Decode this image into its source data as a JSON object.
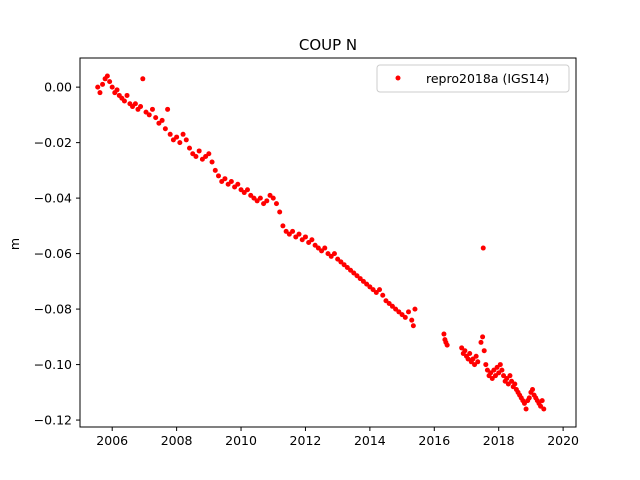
{
  "chart_data": {
    "type": "scatter",
    "title": "COUP N",
    "xlabel": "",
    "ylabel": "m",
    "xlim": [
      2005.0,
      2020.4
    ],
    "ylim": [
      -0.1225,
      0.0105
    ],
    "xticks": [
      2006,
      2008,
      2010,
      2012,
      2014,
      2016,
      2018,
      2020
    ],
    "xtick_labels": [
      "2006",
      "2008",
      "2010",
      "2012",
      "2014",
      "2016",
      "2018",
      "2020"
    ],
    "yticks": [
      0.0,
      -0.02,
      -0.04,
      -0.06,
      -0.08,
      -0.1,
      -0.12
    ],
    "ytick_labels": [
      "0.00",
      "−0.02",
      "−0.04",
      "−0.06",
      "−0.08",
      "−0.10",
      "−0.12"
    ],
    "legend": {
      "position": "top-right",
      "entries": [
        "repro2018a (IGS14)"
      ]
    },
    "grid": false,
    "series": [
      {
        "name": "repro2018a (IGS14)",
        "color": "#ff0000",
        "marker": "circle",
        "points": [
          [
            2005.55,
            0.0
          ],
          [
            2005.62,
            -0.002
          ],
          [
            2005.7,
            0.001
          ],
          [
            2005.78,
            0.003
          ],
          [
            2005.85,
            0.004
          ],
          [
            2005.92,
            0.002
          ],
          [
            2006.0,
            0.0
          ],
          [
            2006.08,
            -0.002
          ],
          [
            2006.15,
            -0.001
          ],
          [
            2006.22,
            -0.003
          ],
          [
            2006.3,
            -0.004
          ],
          [
            2006.38,
            -0.005
          ],
          [
            2006.46,
            -0.003
          ],
          [
            2006.55,
            -0.006
          ],
          [
            2006.63,
            -0.007
          ],
          [
            2006.72,
            -0.006
          ],
          [
            2006.8,
            -0.008
          ],
          [
            2006.88,
            -0.007
          ],
          [
            2006.95,
            0.003
          ],
          [
            2007.05,
            -0.009
          ],
          [
            2007.15,
            -0.01
          ],
          [
            2007.25,
            -0.008
          ],
          [
            2007.35,
            -0.011
          ],
          [
            2007.45,
            -0.013
          ],
          [
            2007.55,
            -0.012
          ],
          [
            2007.65,
            -0.015
          ],
          [
            2007.72,
            -0.008
          ],
          [
            2007.8,
            -0.017
          ],
          [
            2007.9,
            -0.019
          ],
          [
            2008.0,
            -0.018
          ],
          [
            2008.1,
            -0.02
          ],
          [
            2008.2,
            -0.017
          ],
          [
            2008.3,
            -0.019
          ],
          [
            2008.4,
            -0.022
          ],
          [
            2008.5,
            -0.024
          ],
          [
            2008.6,
            -0.025
          ],
          [
            2008.7,
            -0.023
          ],
          [
            2008.8,
            -0.026
          ],
          [
            2008.9,
            -0.025
          ],
          [
            2009.0,
            -0.024
          ],
          [
            2009.1,
            -0.027
          ],
          [
            2009.2,
            -0.03
          ],
          [
            2009.3,
            -0.032
          ],
          [
            2009.4,
            -0.034
          ],
          [
            2009.5,
            -0.033
          ],
          [
            2009.6,
            -0.035
          ],
          [
            2009.7,
            -0.034
          ],
          [
            2009.8,
            -0.036
          ],
          [
            2009.9,
            -0.035
          ],
          [
            2010.0,
            -0.037
          ],
          [
            2010.1,
            -0.038
          ],
          [
            2010.2,
            -0.037
          ],
          [
            2010.3,
            -0.039
          ],
          [
            2010.4,
            -0.04
          ],
          [
            2010.5,
            -0.041
          ],
          [
            2010.6,
            -0.04
          ],
          [
            2010.7,
            -0.042
          ],
          [
            2010.8,
            -0.041
          ],
          [
            2010.9,
            -0.039
          ],
          [
            2011.0,
            -0.04
          ],
          [
            2011.1,
            -0.042
          ],
          [
            2011.2,
            -0.045
          ],
          [
            2011.3,
            -0.05
          ],
          [
            2011.4,
            -0.052
          ],
          [
            2011.5,
            -0.053
          ],
          [
            2011.6,
            -0.052
          ],
          [
            2011.7,
            -0.054
          ],
          [
            2011.8,
            -0.053
          ],
          [
            2011.9,
            -0.055
          ],
          [
            2012.0,
            -0.054
          ],
          [
            2012.1,
            -0.056
          ],
          [
            2012.2,
            -0.055
          ],
          [
            2012.3,
            -0.057
          ],
          [
            2012.4,
            -0.058
          ],
          [
            2012.5,
            -0.059
          ],
          [
            2012.6,
            -0.058
          ],
          [
            2012.7,
            -0.06
          ],
          [
            2012.8,
            -0.061
          ],
          [
            2012.9,
            -0.06
          ],
          [
            2013.0,
            -0.062
          ],
          [
            2013.1,
            -0.063
          ],
          [
            2013.2,
            -0.064
          ],
          [
            2013.3,
            -0.065
          ],
          [
            2013.4,
            -0.066
          ],
          [
            2013.5,
            -0.067
          ],
          [
            2013.6,
            -0.068
          ],
          [
            2013.7,
            -0.069
          ],
          [
            2013.8,
            -0.07
          ],
          [
            2013.9,
            -0.071
          ],
          [
            2014.0,
            -0.072
          ],
          [
            2014.1,
            -0.073
          ],
          [
            2014.2,
            -0.074
          ],
          [
            2014.3,
            -0.073
          ],
          [
            2014.4,
            -0.075
          ],
          [
            2014.5,
            -0.077
          ],
          [
            2014.6,
            -0.078
          ],
          [
            2014.7,
            -0.079
          ],
          [
            2014.8,
            -0.08
          ],
          [
            2014.9,
            -0.081
          ],
          [
            2015.0,
            -0.082
          ],
          [
            2015.1,
            -0.083
          ],
          [
            2015.2,
            -0.081
          ],
          [
            2015.3,
            -0.084
          ],
          [
            2015.35,
            -0.086
          ],
          [
            2015.4,
            -0.08
          ],
          [
            2016.3,
            -0.089
          ],
          [
            2016.33,
            -0.091
          ],
          [
            2016.36,
            -0.092
          ],
          [
            2016.4,
            -0.093
          ],
          [
            2016.85,
            -0.094
          ],
          [
            2016.9,
            -0.096
          ],
          [
            2016.95,
            -0.095
          ],
          [
            2017.0,
            -0.097
          ],
          [
            2017.05,
            -0.098
          ],
          [
            2017.1,
            -0.096
          ],
          [
            2017.15,
            -0.099
          ],
          [
            2017.2,
            -0.098
          ],
          [
            2017.25,
            -0.1
          ],
          [
            2017.3,
            -0.097
          ],
          [
            2017.35,
            -0.099
          ],
          [
            2017.45,
            -0.092
          ],
          [
            2017.5,
            -0.09
          ],
          [
            2017.52,
            -0.058
          ],
          [
            2017.55,
            -0.095
          ],
          [
            2017.6,
            -0.1
          ],
          [
            2017.65,
            -0.102
          ],
          [
            2017.7,
            -0.104
          ],
          [
            2017.75,
            -0.103
          ],
          [
            2017.8,
            -0.105
          ],
          [
            2017.85,
            -0.102
          ],
          [
            2017.9,
            -0.104
          ],
          [
            2017.95,
            -0.101
          ],
          [
            2018.0,
            -0.103
          ],
          [
            2018.05,
            -0.1
          ],
          [
            2018.1,
            -0.102
          ],
          [
            2018.15,
            -0.104
          ],
          [
            2018.2,
            -0.106
          ],
          [
            2018.25,
            -0.105
          ],
          [
            2018.3,
            -0.107
          ],
          [
            2018.35,
            -0.104
          ],
          [
            2018.4,
            -0.106
          ],
          [
            2018.45,
            -0.108
          ],
          [
            2018.5,
            -0.107
          ],
          [
            2018.55,
            -0.109
          ],
          [
            2018.6,
            -0.11
          ],
          [
            2018.65,
            -0.111
          ],
          [
            2018.7,
            -0.112
          ],
          [
            2018.75,
            -0.113
          ],
          [
            2018.8,
            -0.114
          ],
          [
            2018.85,
            -0.116
          ],
          [
            2018.9,
            -0.113
          ],
          [
            2018.95,
            -0.112
          ],
          [
            2019.0,
            -0.11
          ],
          [
            2019.05,
            -0.109
          ],
          [
            2019.1,
            -0.111
          ],
          [
            2019.15,
            -0.112
          ],
          [
            2019.2,
            -0.113
          ],
          [
            2019.25,
            -0.114
          ],
          [
            2019.3,
            -0.115
          ],
          [
            2019.35,
            -0.113
          ],
          [
            2019.4,
            -0.116
          ]
        ]
      }
    ]
  }
}
